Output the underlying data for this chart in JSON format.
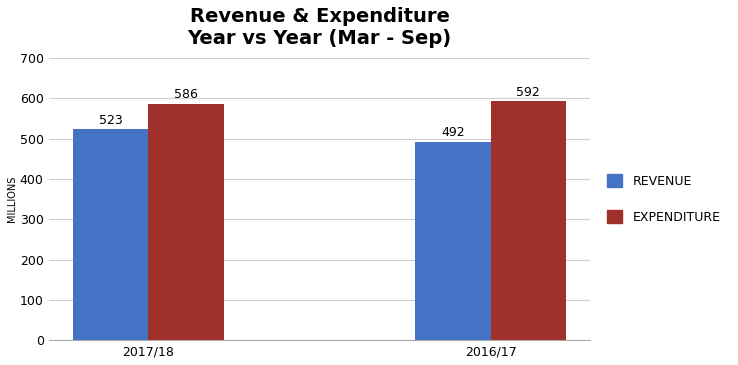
{
  "title_line1": "Revenue & Expenditure",
  "title_line2": "Year vs Year (Mar - Sep)",
  "categories": [
    "2017/18",
    "2016/17"
  ],
  "revenue": [
    523,
    492
  ],
  "expenditure": [
    586,
    592
  ],
  "revenue_color": "#4472C4",
  "expenditure_color": "#A0302A",
  "ylabel": "MILLIONS",
  "ylim": [
    0,
    700
  ],
  "yticks": [
    0,
    100,
    200,
    300,
    400,
    500,
    600,
    700
  ],
  "legend_labels": [
    "REVENUE",
    "EXPENDITURE"
  ],
  "bar_width": 0.22,
  "title_fontsize": 14,
  "label_fontsize": 9,
  "tick_fontsize": 9,
  "ylabel_fontsize": 7,
  "background_color": "#ffffff",
  "grid_color": "#d0d0d0"
}
